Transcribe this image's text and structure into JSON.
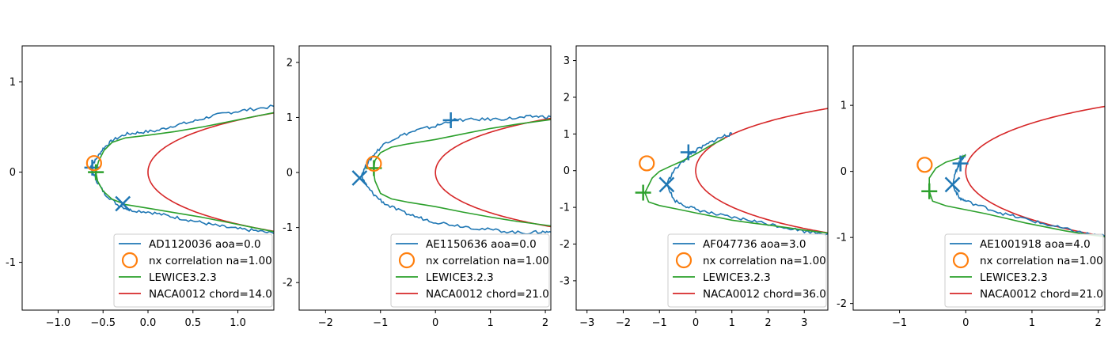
{
  "colors": {
    "blue": "#1f77b4",
    "orange": "#ff7f0e",
    "green": "#2ca02c",
    "red": "#d62728",
    "frame": "#000000",
    "legend_border": "#cccccc"
  },
  "chart_data": [
    {
      "type": "line",
      "legend_position": "lower-right",
      "xlim": [
        -1.4,
        1.4
      ],
      "ylim": [
        -1.53,
        1.4
      ],
      "xticks": [
        -1.0,
        -0.5,
        0.0,
        0.5,
        1.0
      ],
      "xtick_labels": [
        "−1.0",
        "−0.5",
        "0.0",
        "0.5",
        "1.0"
      ],
      "yticks": [
        1,
        0,
        -1
      ],
      "ytick_labels": [
        "1",
        "0",
        "-1"
      ],
      "chord": 14.0,
      "legend": [
        "AD1120036 aoa=0.0",
        "nx correlation na=1.00",
        "LEWICE3.2.3",
        "NACA0012 chord=14.0"
      ],
      "experiment_upper": [
        [
          -0.64,
          0.06
        ],
        [
          -0.58,
          0.14
        ],
        [
          -0.5,
          0.26
        ],
        [
          -0.4,
          0.35
        ],
        [
          -0.25,
          0.42
        ],
        [
          -0.1,
          0.44
        ],
        [
          0.1,
          0.46
        ],
        [
          0.3,
          0.52
        ],
        [
          0.5,
          0.56
        ],
        [
          0.7,
          0.62
        ],
        [
          0.9,
          0.66
        ],
        [
          1.1,
          0.69
        ],
        [
          1.4,
          0.73
        ]
      ],
      "experiment_lower": [
        [
          -0.64,
          0.06
        ],
        [
          -0.57,
          -0.1
        ],
        [
          -0.48,
          -0.24
        ],
        [
          -0.34,
          -0.36
        ],
        [
          -0.2,
          -0.42
        ],
        [
          0.0,
          -0.44
        ],
        [
          0.2,
          -0.48
        ],
        [
          0.4,
          -0.52
        ],
        [
          0.6,
          -0.56
        ],
        [
          0.8,
          -0.6
        ],
        [
          1.0,
          -0.63
        ],
        [
          1.2,
          -0.65
        ],
        [
          1.4,
          -0.68
        ]
      ],
      "lewice_upper": [
        [
          -0.58,
          0.0
        ],
        [
          -0.55,
          0.12
        ],
        [
          -0.49,
          0.24
        ],
        [
          -0.4,
          0.33
        ],
        [
          -0.25,
          0.38
        ],
        [
          0.0,
          0.41
        ],
        [
          0.3,
          0.45
        ],
        [
          0.6,
          0.5
        ],
        [
          0.9,
          0.56
        ],
        [
          1.2,
          0.62
        ],
        [
          1.4,
          0.66
        ]
      ],
      "lewice_lower": [
        [
          -0.58,
          0.0
        ],
        [
          -0.56,
          -0.1
        ],
        [
          -0.5,
          -0.21
        ],
        [
          -0.4,
          -0.3
        ],
        [
          -0.25,
          -0.36
        ],
        [
          0.0,
          -0.4
        ],
        [
          0.3,
          -0.45
        ],
        [
          0.6,
          -0.5
        ],
        [
          0.9,
          -0.56
        ],
        [
          1.2,
          -0.62
        ],
        [
          1.4,
          -0.66
        ]
      ],
      "blue_plus": [
        -0.62,
        0.05
      ],
      "blue_x": [
        -0.28,
        -0.35
      ],
      "orange_circle": [
        -0.6,
        0.1
      ],
      "green_plus": [
        -0.58,
        0.0
      ]
    },
    {
      "type": "line",
      "legend_position": "lower-right",
      "xlim": [
        -2.48,
        2.1
      ],
      "ylim": [
        -2.5,
        2.3
      ],
      "xticks": [
        -2,
        -1,
        0,
        1,
        2
      ],
      "xtick_labels": [
        "−2",
        "−1",
        "0",
        "1",
        "2"
      ],
      "yticks": [
        2,
        1,
        0,
        -1,
        -2
      ],
      "ytick_labels": [
        "2",
        "1",
        "0",
        "-1",
        "-2"
      ],
      "chord": 21.0,
      "legend": [
        "AE1150636 aoa=0.0",
        "nx correlation na=1.00",
        "LEWICE3.2.3",
        "NACA0012 chord=21.0"
      ],
      "experiment_upper": [
        [
          -1.35,
          -0.05
        ],
        [
          -1.25,
          0.15
        ],
        [
          -1.1,
          0.35
        ],
        [
          -0.9,
          0.55
        ],
        [
          -0.6,
          0.68
        ],
        [
          -0.3,
          0.78
        ],
        [
          0.0,
          0.84
        ],
        [
          0.3,
          0.95
        ],
        [
          0.7,
          0.96
        ],
        [
          1.1,
          0.97
        ],
        [
          1.5,
          0.99
        ],
        [
          1.8,
          1.02
        ],
        [
          2.1,
          1.01
        ]
      ],
      "experiment_lower": [
        [
          -1.35,
          -0.05
        ],
        [
          -1.25,
          -0.25
        ],
        [
          -1.1,
          -0.42
        ],
        [
          -0.9,
          -0.58
        ],
        [
          -0.6,
          -0.72
        ],
        [
          -0.3,
          -0.82
        ],
        [
          0.0,
          -0.9
        ],
        [
          0.4,
          -0.96
        ],
        [
          0.8,
          -1.02
        ],
        [
          1.2,
          -1.06
        ],
        [
          1.6,
          -1.1
        ],
        [
          1.9,
          -1.08
        ],
        [
          2.1,
          -1.08
        ]
      ],
      "lewice_upper": [
        [
          -1.13,
          0.05
        ],
        [
          -1.1,
          0.22
        ],
        [
          -1.0,
          0.36
        ],
        [
          -0.8,
          0.46
        ],
        [
          -0.5,
          0.52
        ],
        [
          0.0,
          0.6
        ],
        [
          0.5,
          0.7
        ],
        [
          1.0,
          0.8
        ],
        [
          1.5,
          0.88
        ],
        [
          2.1,
          0.96
        ]
      ],
      "lewice_lower": [
        [
          -1.13,
          0.05
        ],
        [
          -1.1,
          -0.15
        ],
        [
          -1.0,
          -0.38
        ],
        [
          -0.8,
          -0.48
        ],
        [
          -0.5,
          -0.54
        ],
        [
          0.0,
          -0.62
        ],
        [
          0.5,
          -0.72
        ],
        [
          1.0,
          -0.81
        ],
        [
          1.5,
          -0.89
        ],
        [
          2.1,
          -0.97
        ]
      ],
      "blue_plus": [
        0.28,
        0.95
      ],
      "blue_x": [
        -1.38,
        -0.1
      ],
      "orange_circle": [
        -1.12,
        0.16
      ],
      "green_plus": [
        -1.12,
        0.08
      ]
    },
    {
      "type": "line",
      "legend_position": "lower-right",
      "xlim": [
        -3.3,
        3.65
      ],
      "ylim": [
        -3.8,
        3.4
      ],
      "xticks": [
        -3,
        -2,
        -1,
        0,
        1,
        2,
        3
      ],
      "xtick_labels": [
        "−3",
        "−2",
        "−1",
        "0",
        "1",
        "2",
        "3"
      ],
      "yticks": [
        3,
        2,
        1,
        0,
        -1,
        -2,
        -3
      ],
      "ytick_labels": [
        "3",
        "2",
        "1",
        "0",
        "-1",
        "-2",
        "-3"
      ],
      "chord": 36.0,
      "legend": [
        "AF047736 aoa=3.0",
        "nx correlation na=1.00",
        "LEWICE3.2.3",
        "NACA0012 chord=36.0"
      ],
      "experiment_upper": [
        [
          -0.8,
          -0.35
        ],
        [
          -0.6,
          0.0
        ],
        [
          -0.3,
          0.3
        ],
        [
          -0.1,
          0.5
        ],
        [
          0.2,
          0.65
        ],
        [
          0.5,
          0.82
        ],
        [
          0.8,
          0.95
        ],
        [
          1.0,
          1.0
        ]
      ],
      "experiment_lower": [
        [
          -0.8,
          -0.35
        ],
        [
          -0.6,
          -0.8
        ],
        [
          -0.3,
          -0.95
        ],
        [
          0.0,
          -1.05
        ],
        [
          0.5,
          -1.18
        ],
        [
          1.0,
          -1.28
        ],
        [
          1.5,
          -1.35
        ],
        [
          2.0,
          -1.45
        ],
        [
          2.5,
          -1.55
        ],
        [
          3.0,
          -1.65
        ],
        [
          3.65,
          -1.72
        ]
      ],
      "lewice_upper": [
        [
          -1.4,
          -0.6
        ],
        [
          -1.2,
          -0.2
        ],
        [
          -1.0,
          -0.02
        ],
        [
          -0.7,
          0.12
        ],
        [
          -0.4,
          0.25
        ],
        [
          0.0,
          0.45
        ],
        [
          0.4,
          0.68
        ],
        [
          0.8,
          0.88
        ]
      ],
      "lewice_lower": [
        [
          -1.4,
          -0.6
        ],
        [
          -1.3,
          -0.85
        ],
        [
          -1.0,
          -0.95
        ],
        [
          -0.5,
          -1.05
        ],
        [
          0.0,
          -1.15
        ],
        [
          0.5,
          -1.25
        ],
        [
          1.0,
          -1.35
        ],
        [
          1.5,
          -1.42
        ],
        [
          2.0,
          -1.48
        ],
        [
          2.5,
          -1.55
        ],
        [
          3.0,
          -1.62
        ],
        [
          3.65,
          -1.7
        ]
      ],
      "blue_plus": [
        -0.2,
        0.5
      ],
      "blue_x": [
        -0.8,
        -0.38
      ],
      "orange_circle": [
        -1.35,
        0.2
      ],
      "green_plus": [
        -1.45,
        -0.6
      ]
    },
    {
      "type": "line",
      "legend_position": "lower-right",
      "xlim": [
        -1.7,
        2.1
      ],
      "ylim": [
        -2.1,
        1.9
      ],
      "xticks": [
        -1,
        0,
        1,
        2
      ],
      "xtick_labels": [
        "−1",
        "0",
        "1",
        "2"
      ],
      "yticks": [
        1,
        0,
        -1,
        -2
      ],
      "ytick_labels": [
        "1",
        "0",
        "-1",
        "-2"
      ],
      "chord": 21.0,
      "legend": [
        "AE1001918 aoa=4.0",
        "nx correlation na=1.00",
        "LEWICE3.2.3",
        "NACA0012 chord=21.0"
      ],
      "experiment_upper": [
        [
          -0.2,
          -0.2
        ],
        [
          -0.15,
          0.0
        ],
        [
          -0.1,
          0.12
        ],
        [
          -0.05,
          0.2
        ],
        [
          0.0,
          0.25
        ]
      ],
      "experiment_lower": [
        [
          -0.2,
          -0.2
        ],
        [
          -0.1,
          -0.4
        ],
        [
          0.0,
          -0.45
        ],
        [
          0.3,
          -0.55
        ],
        [
          0.6,
          -0.65
        ],
        [
          0.9,
          -0.72
        ],
        [
          1.2,
          -0.8
        ],
        [
          1.5,
          -0.87
        ],
        [
          1.8,
          -0.94
        ],
        [
          2.1,
          -0.98
        ]
      ],
      "lewice_upper": [
        [
          -0.55,
          -0.3
        ],
        [
          -0.55,
          -0.1
        ],
        [
          -0.45,
          0.05
        ],
        [
          -0.3,
          0.14
        ],
        [
          -0.1,
          0.2
        ],
        [
          0.0,
          0.25
        ]
      ],
      "lewice_lower": [
        [
          -0.55,
          -0.3
        ],
        [
          -0.5,
          -0.45
        ],
        [
          -0.3,
          -0.52
        ],
        [
          0.0,
          -0.58
        ],
        [
          0.3,
          -0.64
        ],
        [
          0.6,
          -0.71
        ],
        [
          0.9,
          -0.78
        ],
        [
          1.2,
          -0.84
        ],
        [
          1.5,
          -0.9
        ],
        [
          1.8,
          -0.95
        ],
        [
          2.1,
          -0.99
        ]
      ],
      "blue_plus": [
        -0.08,
        0.12
      ],
      "blue_x": [
        -0.2,
        -0.2
      ],
      "orange_circle": [
        -0.62,
        0.1
      ],
      "green_plus": [
        -0.55,
        -0.3
      ]
    }
  ]
}
